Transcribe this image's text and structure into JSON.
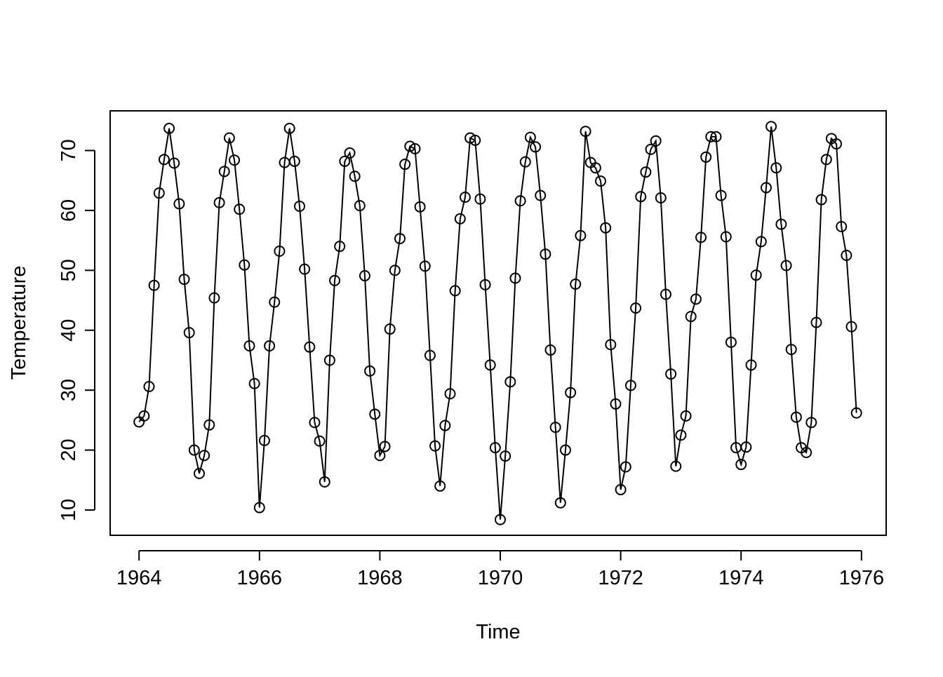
{
  "chart_data": {
    "type": "line",
    "x_label": "Time",
    "y_label": "Temperature",
    "start": 1964,
    "frequency": 12,
    "values": [
      24.7,
      25.7,
      30.6,
      47.5,
      62.9,
      68.5,
      73.7,
      67.9,
      61.1,
      48.5,
      39.6,
      20.0,
      16.1,
      19.1,
      24.2,
      45.4,
      61.3,
      66.5,
      72.1,
      68.4,
      60.2,
      50.9,
      37.4,
      31.1,
      10.4,
      21.6,
      37.4,
      44.7,
      53.2,
      68.0,
      73.7,
      68.2,
      60.7,
      50.2,
      37.2,
      24.6,
      21.5,
      14.7,
      35.0,
      48.3,
      54.0,
      68.2,
      69.6,
      65.7,
      60.8,
      49.1,
      33.2,
      26.0,
      19.1,
      20.6,
      40.2,
      50.0,
      55.3,
      67.7,
      70.7,
      70.3,
      60.6,
      50.7,
      35.8,
      20.7,
      14.0,
      24.1,
      29.4,
      46.6,
      58.6,
      62.2,
      72.1,
      71.7,
      61.9,
      47.6,
      34.2,
      20.4,
      8.4,
      19.0,
      31.4,
      48.7,
      61.6,
      68.1,
      72.2,
      70.6,
      62.5,
      52.7,
      36.7,
      23.8,
      11.2,
      20.0,
      29.6,
      47.7,
      55.8,
      73.2,
      68.0,
      67.1,
      64.9,
      57.1,
      37.6,
      27.7,
      13.4,
      17.2,
      30.8,
      43.7,
      62.3,
      66.4,
      70.2,
      71.6,
      62.1,
      46.0,
      32.7,
      17.3,
      22.5,
      25.7,
      42.3,
      45.2,
      55.5,
      68.9,
      72.3,
      72.3,
      62.5,
      55.6,
      38.0,
      20.4,
      17.6,
      20.5,
      34.2,
      49.2,
      54.8,
      63.8,
      74.0,
      67.1,
      57.7,
      50.8,
      36.8,
      25.5,
      20.4,
      19.6,
      24.6,
      41.3,
      61.8,
      68.5,
      72.0,
      71.1,
      57.3,
      52.5,
      40.6,
      26.2
    ],
    "color": "#000000",
    "markers": "open-circle",
    "xlim": [
      1963.52,
      1976.41
    ],
    "xticks": [
      1964,
      1966,
      1968,
      1970,
      1972,
      1974,
      1976
    ],
    "ylim": [
      5.78,
      76.62
    ],
    "yticks": [
      10,
      20,
      30,
      40,
      50,
      60,
      70
    ],
    "grid": false
  }
}
